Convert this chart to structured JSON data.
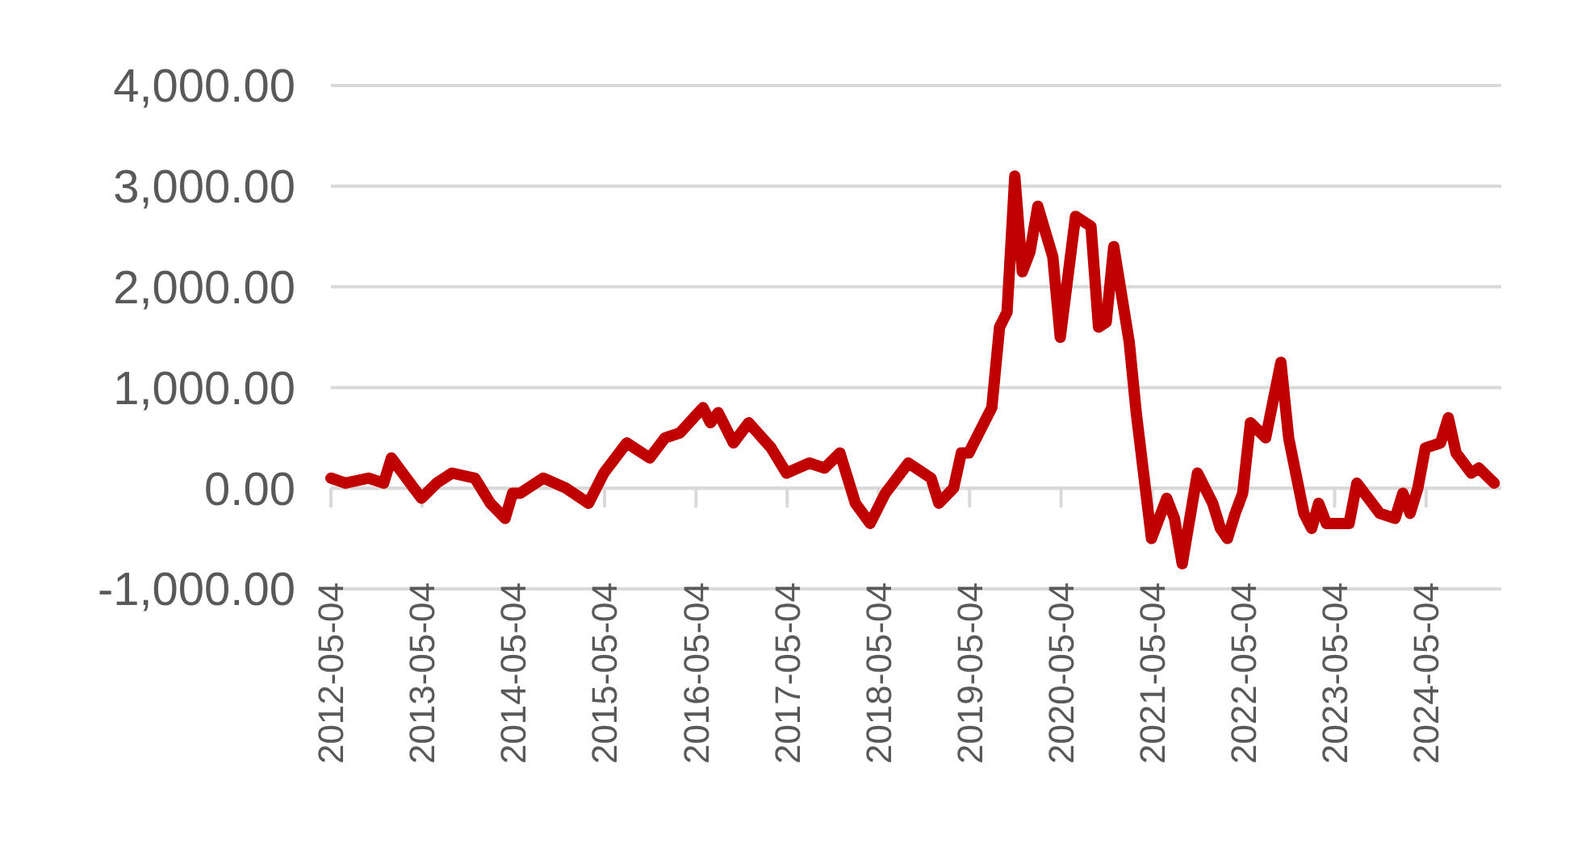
{
  "chart_data": {
    "type": "line",
    "xlim": [
      "2012-05-04",
      "2025-03-01"
    ],
    "ylim": [
      -1000,
      4000
    ],
    "xticks": [
      "2012-05-04",
      "2013-05-04",
      "2014-05-04",
      "2015-05-04",
      "2016-05-04",
      "2017-05-04",
      "2018-05-04",
      "2019-05-04",
      "2020-05-04",
      "2021-05-04",
      "2022-05-04",
      "2023-05-04",
      "2024-05-04"
    ],
    "yticks": [
      {
        "value": -1000,
        "label": "-1,000.00"
      },
      {
        "value": 0,
        "label": "0.00"
      },
      {
        "value": 1000,
        "label": "1,000.00"
      },
      {
        "value": 2000,
        "label": "2,000.00"
      },
      {
        "value": 3000,
        "label": "3,000.00"
      },
      {
        "value": 4000,
        "label": "4,000.00"
      }
    ],
    "grid": "y",
    "marker": "none",
    "line_style": "solid",
    "x": [
      "2012-05-04",
      "2012-07",
      "2012-10",
      "2012-12",
      "2013-01",
      "2013-05",
      "2013-07",
      "2013-09",
      "2013-12",
      "2014-02",
      "2014-04",
      "2014-05",
      "2014-06",
      "2014-09",
      "2014-12",
      "2015-03",
      "2015-05",
      "2015-08",
      "2015-11",
      "2016-01",
      "2016-03",
      "2016-06",
      "2016-07",
      "2016-08",
      "2016-10",
      "2016-12",
      "2017-03",
      "2017-05",
      "2017-08",
      "2017-10",
      "2017-12",
      "2018-02",
      "2018-04",
      "2018-06",
      "2018-09",
      "2018-12",
      "2019-01",
      "2019-03",
      "2019-04",
      "2019-05",
      "2019-07",
      "2019-08",
      "2019-09",
      "2019-10",
      "2019-11",
      "2019-12",
      "2020-01",
      "2020-02",
      "2020-04",
      "2020-05",
      "2020-07",
      "2020-09",
      "2020-10",
      "2020-11",
      "2020-12",
      "2021-02",
      "2021-03",
      "2021-05",
      "2021-07",
      "2021-08",
      "2021-09",
      "2021-11",
      "2022-01",
      "2022-02",
      "2022-03",
      "2022-04",
      "2022-05",
      "2022-06",
      "2022-08",
      "2022-10",
      "2022-11",
      "2023-01",
      "2023-02",
      "2023-03",
      "2023-04",
      "2023-07",
      "2023-08",
      "2023-11",
      "2024-01",
      "2024-02",
      "2024-03",
      "2024-04",
      "2024-05",
      "2024-07",
      "2024-08",
      "2024-09",
      "2024-11",
      "2024-12",
      "2025-02"
    ],
    "series": [
      {
        "color": "#c00000",
        "values": [
          100,
          50,
          100,
          50,
          300,
          -100,
          50,
          150,
          100,
          -150,
          -300,
          -50,
          -50,
          100,
          0,
          -150,
          150,
          450,
          300,
          500,
          550,
          800,
          650,
          750,
          450,
          650,
          400,
          150,
          250,
          200,
          350,
          -150,
          -350,
          -50,
          250,
          100,
          -150,
          0,
          350,
          350,
          650,
          800,
          1600,
          1750,
          3100,
          2150,
          2350,
          2800,
          2300,
          1500,
          2700,
          2600,
          1600,
          1650,
          2400,
          1450,
          750,
          -500,
          -100,
          -300,
          -750,
          150,
          -150,
          -400,
          -500,
          -250,
          -50,
          650,
          500,
          1250,
          500,
          -250,
          -400,
          -150,
          -350,
          -350,
          50,
          -250,
          -300,
          -50,
          -250,
          0,
          400,
          450,
          700,
          350,
          150,
          200,
          50
        ]
      }
    ]
  }
}
